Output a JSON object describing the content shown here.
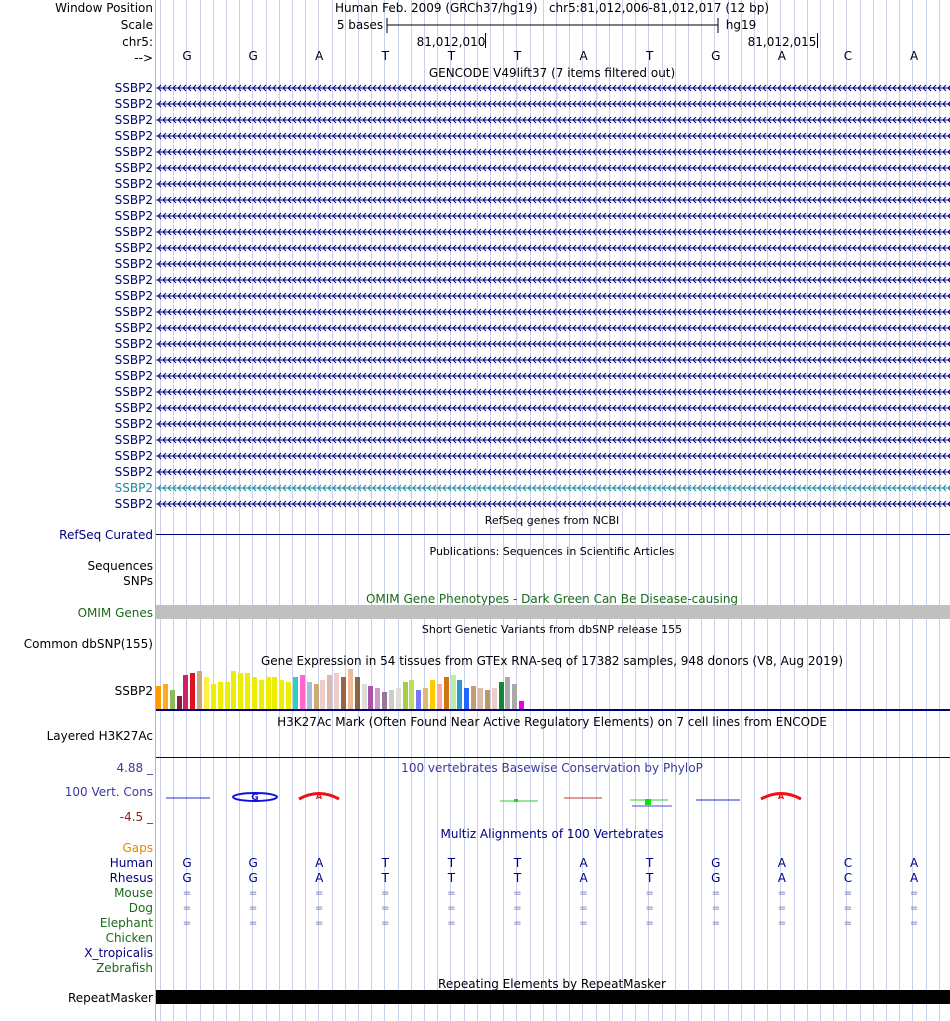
{
  "ruler": {
    "window_label": "Window Position",
    "scale_label": "Scale",
    "chrom_label": "chr5:",
    "strand_label": "-->",
    "title": "Human Feb. 2009 (GRCh37/hg19)   chr5:81,012,006-81,012,017 (12 bp)",
    "scale_text": "5 bases",
    "scale_db": "hg19",
    "pos1": "81,012,010",
    "pos2": "81,012,015"
  },
  "bases": [
    "G",
    "G",
    "A",
    "T",
    "T",
    "T",
    "A",
    "T",
    "G",
    "A",
    "C",
    "A"
  ],
  "gencode": {
    "title": "GENCODE V49lift37 (7 items filtered out)",
    "gene": "SSBP2",
    "count": 27,
    "highlight_index": 25
  },
  "refseq": {
    "title": "RefSeq genes from NCBI",
    "label": "RefSeq Curated"
  },
  "pubs": {
    "title": "Publications: Sequences in Scientific Articles",
    "label1": "Sequences",
    "label2": "SNPs"
  },
  "omim": {
    "title": "OMIM Gene Phenotypes - Dark Green Can Be Disease-causing",
    "label": "OMIM Genes"
  },
  "dbsnp": {
    "title": "Short Genetic Variants from dbSNP release 155",
    "label": "Common dbSNP(155)"
  },
  "gtex": {
    "title": "Gene Expression in 54 tissues from GTEx RNA-seq of 17382 samples, 948 donors (V8, Aug 2019)",
    "label": "SSBP2",
    "values": [
      0.55,
      0.6,
      0.45,
      0.3,
      0.8,
      0.85,
      0.9,
      0.75,
      0.6,
      0.65,
      0.65,
      0.9,
      0.85,
      0.85,
      0.75,
      0.7,
      0.75,
      0.75,
      0.7,
      0.65,
      0.75,
      0.8,
      0.65,
      0.6,
      0.7,
      0.8,
      0.85,
      0.75,
      0.95,
      0.75,
      0.6,
      0.55,
      0.5,
      0.4,
      0.45,
      0.5,
      0.65,
      0.7,
      0.45,
      0.5,
      0.7,
      0.6,
      0.75,
      0.8,
      0.7,
      0.5,
      0.55,
      0.5,
      0.45,
      0.5,
      0.65,
      0.75,
      0.6,
      0.2
    ],
    "colors": [
      "#ff9900",
      "#ffaa22",
      "#8fbc5a",
      "#8b1a4a",
      "#cc2266",
      "#dd1122",
      "#c8a880",
      "#ffee44",
      "#eeee00",
      "#eeee00",
      "#eeee00",
      "#eeee00",
      "#eeee00",
      "#eeee00",
      "#eeee00",
      "#eeee00",
      "#eeee00",
      "#eeee00",
      "#eeee00",
      "#eeee00",
      "#33cccc",
      "#ff66cc",
      "#aabbdd",
      "#ccaa77",
      "#eecccc",
      "#ddbbaa",
      "#eecccc",
      "#996644",
      "#eebb99",
      "#886644",
      "#dddddd",
      "#aa55aa",
      "#cc99cc",
      "#997799",
      "#cccccc",
      "#dddddd",
      "#aacc44",
      "#bbdd66",
      "#7777ff",
      "#ddbb77",
      "#ffcc00",
      "#ffaaaa",
      "#cc7711",
      "#bbeeaa",
      "#3399cc",
      "#2266ff",
      "#cc9977",
      "#ddbbaa",
      "#bb9966",
      "#eecccc",
      "#118833",
      "#aaaaaa",
      "#aaaaaa",
      "#ee00ee"
    ]
  },
  "h3k27": {
    "title": "H3K27Ac Mark (Often Found Near Active Regulatory Elements) on 7 cell lines from ENCODE",
    "label": "Layered H3K27Ac"
  },
  "cons": {
    "title": "100 vertebrates Basewise Conservation by PhyloP",
    "label": "100 Vert. Cons",
    "max": "4.88 _",
    "min": "-4.5 _"
  },
  "multiz": {
    "title": "Multiz Alignments of 100 Vertebrates",
    "gaps": "Gaps",
    "human": "Human",
    "rhesus": "Rhesus",
    "mouse": "Mouse",
    "dog": "Dog",
    "elephant": "Elephant",
    "chicken": "Chicken",
    "xtrop": "X_tropicalis",
    "zebrafish": "Zebrafish",
    "eq": "="
  },
  "rmsk": {
    "title": "Repeating Elements by RepeatMasker",
    "label": "RepeatMasker"
  }
}
